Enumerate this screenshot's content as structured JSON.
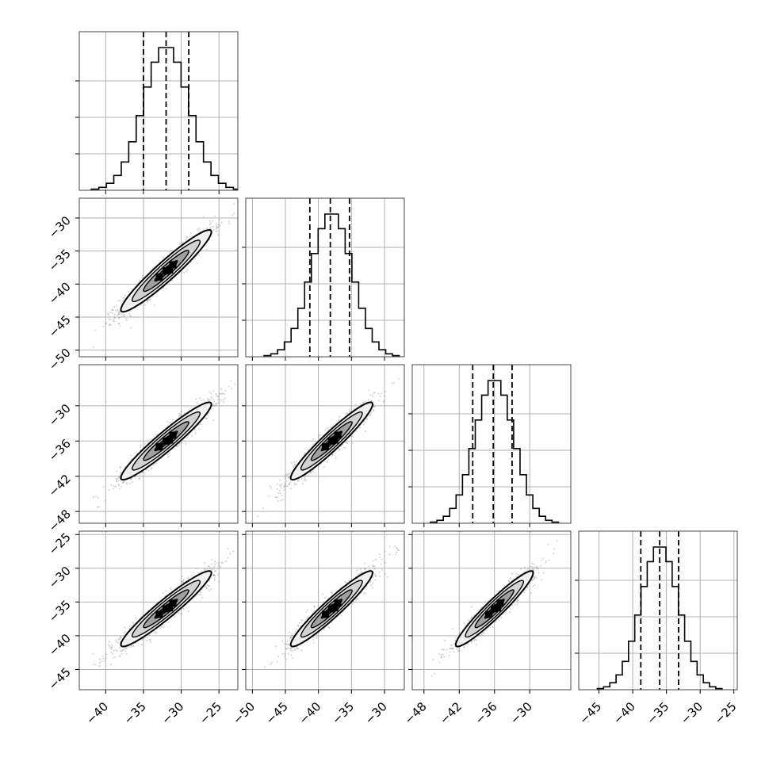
{
  "chart_data": {
    "type": "scatter",
    "description_kind": "corner plot (pairwise 2D density contours + 1D histograms)",
    "n_params": 4,
    "params": [
      {
        "index": 0,
        "center": -32,
        "q16": -35.0,
        "q50": -32.0,
        "q84": -29.0,
        "sd": 3.0,
        "range": [
          -43.5,
          -22.5
        ],
        "ticks": [
          -40,
          -35,
          -30,
          -25
        ],
        "tick_labels": [
          "−40",
          "−35",
          "−30",
          "−25"
        ]
      },
      {
        "index": 1,
        "center": -38,
        "q16": -41.3,
        "q50": -38.2,
        "q84": -35.3,
        "sd": 3.1,
        "range": [
          -51.0,
          -27.0
        ],
        "ticks": [
          -50,
          -45,
          -40,
          -35,
          -30
        ],
        "tick_labels": [
          "−50",
          "−45",
          "−40",
          "−35",
          "−30"
        ]
      },
      {
        "index": 2,
        "center": -36,
        "q16": -39.7,
        "q50": -36.2,
        "q84": -33.0,
        "sd": 3.3,
        "range": [
          -50.0,
          -23.0
        ],
        "ticks": [
          -48,
          -42,
          -36,
          -30
        ],
        "tick_labels": [
          "−48",
          "−42",
          "−36",
          "−30"
        ]
      },
      {
        "index": 3,
        "center": -36,
        "q16": -38.8,
        "q50": -36.0,
        "q84": -33.2,
        "sd": 2.8,
        "range": [
          -48.0,
          -24.5
        ],
        "ticks": [
          -45,
          -40,
          -35,
          -30,
          -25
        ],
        "tick_labels": [
          "−45",
          "−40",
          "−35",
          "−30",
          "−25"
        ]
      }
    ],
    "row_tick_overrides": {
      "1": {
        "ticks": [
          -30,
          -35,
          -40,
          -45,
          -50
        ],
        "tick_labels": [
          "−30",
          "−35",
          "−40",
          "−45",
          "−50"
        ]
      },
      "2": {
        "ticks": [
          -30,
          -36,
          -42,
          -48
        ],
        "tick_labels": [
          "−30",
          "−36",
          "−42",
          "−48"
        ]
      },
      "3": {
        "ticks": [
          -25,
          -30,
          -35,
          -40,
          -45
        ],
        "tick_labels": [
          "−25",
          "−30",
          "−35",
          "−40",
          "−45"
        ]
      }
    },
    "correlation": 0.95,
    "histogram_bins": 20,
    "quantile_lines": [
      0.16,
      0.5,
      0.84
    ],
    "contour_levels": [
      "0.5-sigma",
      "1-sigma",
      "1.5-sigma",
      "2-sigma"
    ],
    "grid": true,
    "legend": "none",
    "title": "",
    "xlabel": "",
    "ylabel": ""
  },
  "colors": {
    "frame": "#444444",
    "grid": "#b0b0b0",
    "points": "#808080",
    "hist": "#000000",
    "contour_fill": [
      "#f2f2f2",
      "#cfcfcf",
      "#9a9a9a",
      "#5a5a5a"
    ],
    "peak": "#000000"
  }
}
